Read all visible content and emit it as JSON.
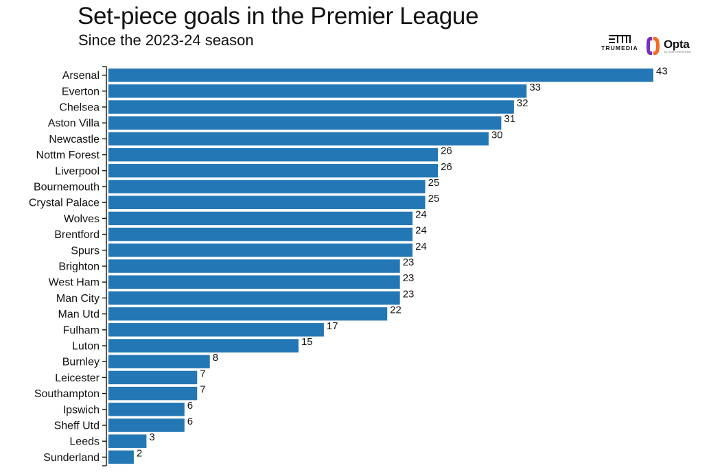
{
  "header": {
    "title": "Set-piece goals in the Premier League",
    "subtitle": "Since the 2023-24 season"
  },
  "logos": {
    "trumedia": "TRUMEDIA",
    "opta": "Opta",
    "opta_sub": "by STATS PERFORM"
  },
  "colors": {
    "bar": "#2377b4",
    "text": "#111111",
    "opta_accent_1": "#7b2fbe",
    "opta_accent_2": "#f26b21"
  },
  "chart_data": {
    "type": "bar",
    "orientation": "horizontal",
    "title": "Set-piece goals in the Premier League",
    "subtitle": "Since the 2023-24 season",
    "xlabel": "",
    "ylabel": "",
    "xlim": [
      0,
      43
    ],
    "grid": false,
    "categories": [
      "Arsenal",
      "Everton",
      "Chelsea",
      "Aston Villa",
      "Newcastle",
      "Nottm Forest",
      "Liverpool",
      "Bournemouth",
      "Crystal Palace",
      "Wolves",
      "Brentford",
      "Spurs",
      "Brighton",
      "West Ham",
      "Man City",
      "Man Utd",
      "Fulham",
      "Luton",
      "Burnley",
      "Leicester",
      "Southampton",
      "Ipswich",
      "Sheff Utd",
      "Leeds",
      "Sunderland"
    ],
    "values": [
      43,
      33,
      32,
      31,
      30,
      26,
      26,
      25,
      25,
      24,
      24,
      24,
      23,
      23,
      23,
      22,
      17,
      15,
      8,
      7,
      7,
      6,
      6,
      3,
      2
    ]
  }
}
